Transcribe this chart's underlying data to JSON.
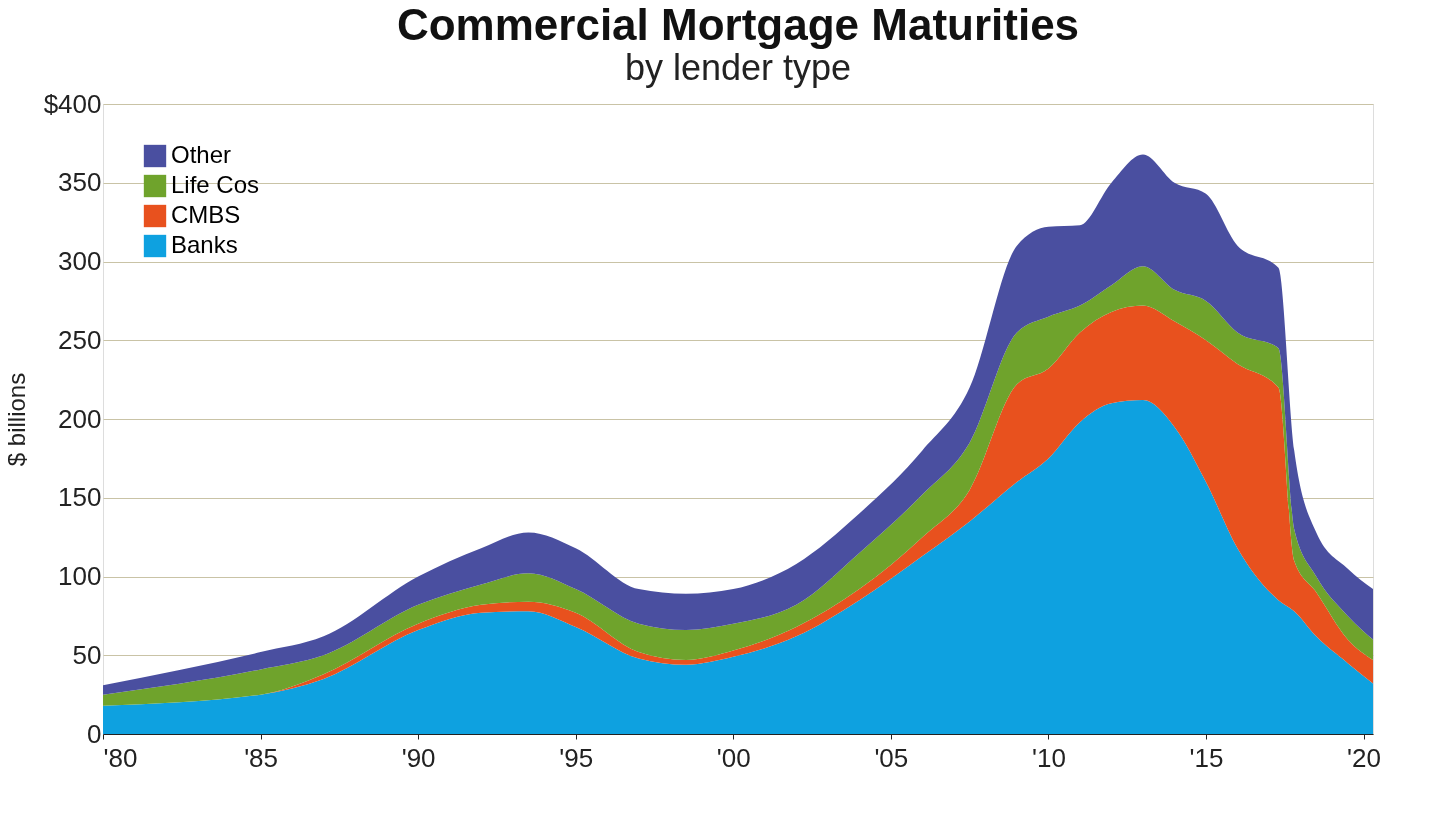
{
  "chart_data": {
    "type": "area",
    "title": "Commercial Mortgage Maturities",
    "subtitle": "by lender type",
    "ylabel": "$ billions",
    "stacked": true,
    "grid": "y",
    "legend": "top left",
    "x": [
      1980,
      1985,
      1987,
      1990,
      1992,
      1993.5,
      1995,
      1997,
      1998.5,
      2000,
      2002,
      2004,
      2006,
      2007.5,
      2009,
      2010,
      2011,
      2012,
      2013,
      2014,
      2015,
      2016,
      2017.3,
      2017.8,
      2018.5,
      2019.5,
      2020.3
    ],
    "series": [
      {
        "name": "Banks",
        "color": "#0ea1e0",
        "values": [
          18,
          25,
          35,
          66,
          77,
          78,
          68,
          48,
          44,
          49,
          62,
          85,
          113,
          135,
          160,
          175,
          198,
          210,
          212,
          195,
          160,
          118,
          85,
          78,
          62,
          45,
          32
        ]
      },
      {
        "name": "CMBS",
        "color": "#e8511e",
        "values": [
          0,
          0,
          3,
          4,
          5,
          6,
          9,
          4,
          3,
          4,
          6,
          7,
          12,
          20,
          62,
          57,
          57,
          58,
          60,
          67,
          90,
          117,
          135,
          32,
          28,
          15,
          15
        ]
      },
      {
        "name": "Life Cos",
        "color": "#6fa32c",
        "values": [
          7,
          16,
          12,
          12,
          13,
          18,
          15,
          18,
          19,
          17,
          14,
          23,
          27,
          30,
          33,
          33,
          17,
          17,
          25,
          20,
          25,
          20,
          25,
          20,
          10,
          15,
          13
        ]
      },
      {
        "name": "Other",
        "color": "#4a4fa0",
        "values": [
          6,
          11,
          12,
          18,
          23,
          26,
          26,
          22,
          23,
          22,
          26,
          25,
          28,
          35,
          55,
          57,
          51,
          65,
          71,
          68,
          68,
          55,
          51,
          50,
          28,
          30,
          32
        ]
      }
    ],
    "xlim": [
      1980,
      2020.3
    ],
    "xticks": [
      {
        "value": 1980,
        "label": "'80"
      },
      {
        "value": 1985,
        "label": "'85"
      },
      {
        "value": 1990,
        "label": "'90"
      },
      {
        "value": 1995,
        "label": "'95"
      },
      {
        "value": 2000,
        "label": "'00"
      },
      {
        "value": 2005,
        "label": "'05"
      },
      {
        "value": 2010,
        "label": "'10"
      },
      {
        "value": 2015,
        "label": "'15"
      },
      {
        "value": 2020,
        "label": "'20"
      }
    ],
    "ylim": [
      0,
      400
    ],
    "yticks": [
      0,
      50,
      100,
      150,
      200,
      250,
      300,
      350,
      {
        "value": 400,
        "label": "$400"
      }
    ]
  }
}
